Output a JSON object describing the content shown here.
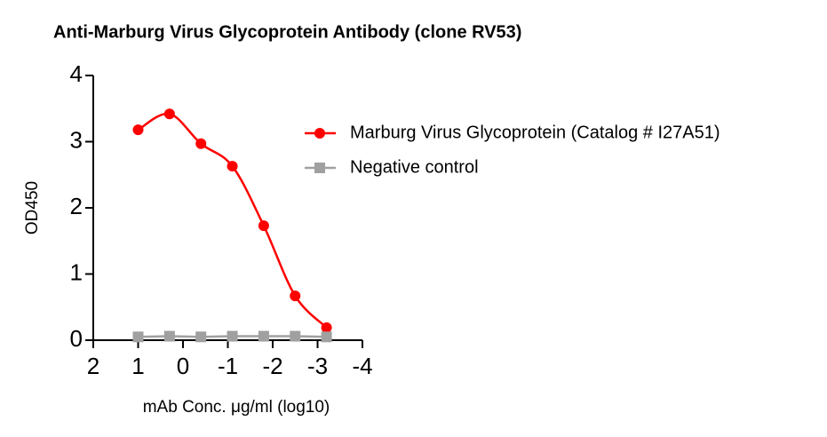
{
  "chart_data": {
    "type": "line",
    "title": "Anti-Marburg Virus Glycoprotein Antibody (clone RV53)",
    "xlabel": "mAb Conc. μg/ml (log10)",
    "ylabel": "OD450",
    "x": [
      1,
      0.3,
      -0.4,
      -1.1,
      -1.8,
      -2.5,
      -3.2
    ],
    "series": [
      {
        "name": "Marburg Virus Glycoprotein (Catalog # I27A51)",
        "color": "#ff0000",
        "marker": "circle",
        "smooth": true,
        "values": [
          3.18,
          3.42,
          2.97,
          2.63,
          1.73,
          0.67,
          0.19
        ]
      },
      {
        "name": "Negative control",
        "color": "#a0a0a0",
        "marker": "square",
        "smooth": false,
        "values": [
          0.05,
          0.06,
          0.05,
          0.06,
          0.06,
          0.06,
          0.05
        ]
      }
    ],
    "xlim": [
      2,
      -4
    ],
    "xticks": [
      2,
      1,
      0,
      -1,
      -2,
      -3,
      -4
    ],
    "ylim": [
      0,
      4
    ],
    "yticks": [
      0,
      1,
      2,
      3,
      4
    ],
    "grid": false,
    "legend": "right"
  }
}
